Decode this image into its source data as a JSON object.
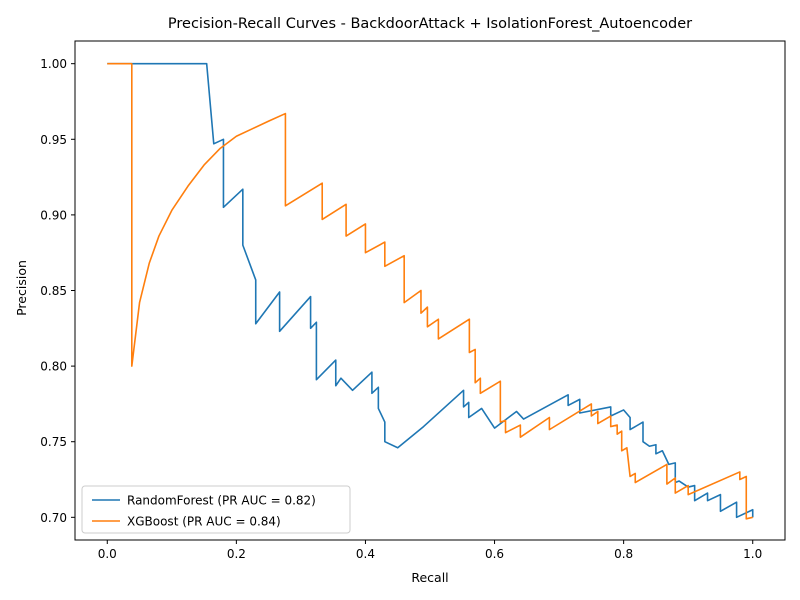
{
  "chart_data": {
    "type": "line",
    "title": "Precision-Recall Curves - BackdoorAttack + IsolationForest_Autoencoder",
    "xlabel": "Recall",
    "ylabel": "Precision",
    "xlim": [
      -0.05,
      1.05
    ],
    "ylim": [
      0.685,
      1.015
    ],
    "xticks": [
      0.0,
      0.2,
      0.4,
      0.6,
      0.8,
      1.0
    ],
    "xtick_labels": [
      "0.0",
      "0.2",
      "0.4",
      "0.6",
      "0.8",
      "1.0"
    ],
    "yticks": [
      0.7,
      0.75,
      0.8,
      0.85,
      0.9,
      0.95,
      1.0
    ],
    "ytick_labels": [
      "0.70",
      "0.75",
      "0.80",
      "0.85",
      "0.90",
      "0.95",
      "1.00"
    ],
    "grid": false,
    "legend_position": "lower left",
    "series": [
      {
        "name": "RandomForest (PR AUC = 0.82)",
        "color": "#1f77b4",
        "points": [
          [
            0.0,
            1.0
          ],
          [
            0.154,
            1.0
          ],
          [
            0.165,
            0.947
          ],
          [
            0.18,
            0.95
          ],
          [
            0.18,
            0.905
          ],
          [
            0.21,
            0.917
          ],
          [
            0.21,
            0.88
          ],
          [
            0.23,
            0.857
          ],
          [
            0.23,
            0.828
          ],
          [
            0.267,
            0.849
          ],
          [
            0.267,
            0.823
          ],
          [
            0.315,
            0.846
          ],
          [
            0.315,
            0.825
          ],
          [
            0.324,
            0.829
          ],
          [
            0.324,
            0.791
          ],
          [
            0.354,
            0.804
          ],
          [
            0.354,
            0.787
          ],
          [
            0.362,
            0.792
          ],
          [
            0.38,
            0.784
          ],
          [
            0.41,
            0.796
          ],
          [
            0.41,
            0.782
          ],
          [
            0.42,
            0.786
          ],
          [
            0.42,
            0.772
          ],
          [
            0.43,
            0.763
          ],
          [
            0.43,
            0.75
          ],
          [
            0.45,
            0.746
          ],
          [
            0.49,
            0.76
          ],
          [
            0.552,
            0.784
          ],
          [
            0.552,
            0.773
          ],
          [
            0.56,
            0.776
          ],
          [
            0.56,
            0.766
          ],
          [
            0.58,
            0.772
          ],
          [
            0.6,
            0.759
          ],
          [
            0.634,
            0.77
          ],
          [
            0.645,
            0.765
          ],
          [
            0.714,
            0.781
          ],
          [
            0.714,
            0.774
          ],
          [
            0.732,
            0.778
          ],
          [
            0.732,
            0.769
          ],
          [
            0.78,
            0.773
          ],
          [
            0.78,
            0.767
          ],
          [
            0.8,
            0.771
          ],
          [
            0.81,
            0.766
          ],
          [
            0.81,
            0.758
          ],
          [
            0.83,
            0.763
          ],
          [
            0.83,
            0.75
          ],
          [
            0.84,
            0.747
          ],
          [
            0.85,
            0.748
          ],
          [
            0.85,
            0.742
          ],
          [
            0.86,
            0.744
          ],
          [
            0.87,
            0.735
          ],
          [
            0.88,
            0.736
          ],
          [
            0.88,
            0.723
          ],
          [
            0.886,
            0.724
          ],
          [
            0.9,
            0.72
          ],
          [
            0.91,
            0.721
          ],
          [
            0.91,
            0.711
          ],
          [
            0.93,
            0.716
          ],
          [
            0.93,
            0.711
          ],
          [
            0.95,
            0.715
          ],
          [
            0.95,
            0.704
          ],
          [
            0.975,
            0.71
          ],
          [
            0.975,
            0.7
          ],
          [
            1.0,
            0.705
          ],
          [
            1.0,
            0.7
          ]
        ]
      },
      {
        "name": "XGBoost (PR AUC = 0.84)",
        "color": "#ff7f0e",
        "points": [
          [
            0.0,
            1.0
          ],
          [
            0.038,
            1.0
          ],
          [
            0.038,
            0.8
          ],
          [
            0.05,
            0.842
          ],
          [
            0.065,
            0.868
          ],
          [
            0.08,
            0.886
          ],
          [
            0.1,
            0.903
          ],
          [
            0.125,
            0.919
          ],
          [
            0.15,
            0.933
          ],
          [
            0.175,
            0.944
          ],
          [
            0.2,
            0.952
          ],
          [
            0.225,
            0.957
          ],
          [
            0.25,
            0.962
          ],
          [
            0.276,
            0.967
          ],
          [
            0.276,
            0.906
          ],
          [
            0.333,
            0.921
          ],
          [
            0.333,
            0.897
          ],
          [
            0.37,
            0.907
          ],
          [
            0.37,
            0.886
          ],
          [
            0.4,
            0.894
          ],
          [
            0.4,
            0.875
          ],
          [
            0.43,
            0.882
          ],
          [
            0.43,
            0.866
          ],
          [
            0.46,
            0.873
          ],
          [
            0.46,
            0.842
          ],
          [
            0.486,
            0.85
          ],
          [
            0.486,
            0.835
          ],
          [
            0.496,
            0.839
          ],
          [
            0.496,
            0.826
          ],
          [
            0.513,
            0.831
          ],
          [
            0.513,
            0.818
          ],
          [
            0.561,
            0.831
          ],
          [
            0.561,
            0.809
          ],
          [
            0.57,
            0.811
          ],
          [
            0.57,
            0.789
          ],
          [
            0.578,
            0.792
          ],
          [
            0.578,
            0.782
          ],
          [
            0.609,
            0.79
          ],
          [
            0.609,
            0.763
          ],
          [
            0.617,
            0.764
          ],
          [
            0.617,
            0.756
          ],
          [
            0.64,
            0.761
          ],
          [
            0.64,
            0.753
          ],
          [
            0.685,
            0.766
          ],
          [
            0.685,
            0.758
          ],
          [
            0.75,
            0.775
          ],
          [
            0.75,
            0.767
          ],
          [
            0.76,
            0.77
          ],
          [
            0.76,
            0.762
          ],
          [
            0.78,
            0.767
          ],
          [
            0.78,
            0.76
          ],
          [
            0.79,
            0.761
          ],
          [
            0.79,
            0.755
          ],
          [
            0.797,
            0.757
          ],
          [
            0.797,
            0.744
          ],
          [
            0.805,
            0.746
          ],
          [
            0.81,
            0.727
          ],
          [
            0.818,
            0.729
          ],
          [
            0.818,
            0.723
          ],
          [
            0.867,
            0.735
          ],
          [
            0.867,
            0.722
          ],
          [
            0.88,
            0.726
          ],
          [
            0.88,
            0.716
          ],
          [
            0.9,
            0.721
          ],
          [
            0.9,
            0.715
          ],
          [
            0.98,
            0.73
          ],
          [
            0.98,
            0.725
          ],
          [
            0.99,
            0.727
          ],
          [
            0.99,
            0.699
          ],
          [
            1.0,
            0.7
          ]
        ]
      }
    ]
  }
}
